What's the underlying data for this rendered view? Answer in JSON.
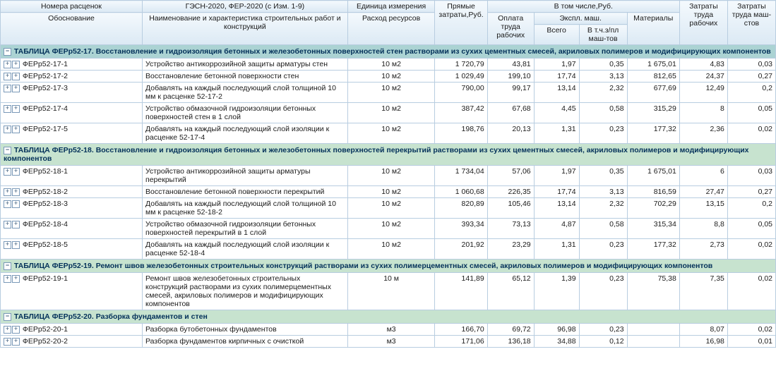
{
  "header": {
    "col1_a": "Номера расценок",
    "col1_b": "Обоснование",
    "col2_a": "ГЭСН-2020, ФЕР-2020 (с Изм. 1-9)",
    "col2_b": "Наименование и характеристика строительных работ и конструкций",
    "col3_a": "Единица измерения",
    "col3_b": "Расход ресурсов",
    "col4": "Прямые затраты,Руб.",
    "col5": "В том числе,Руб.",
    "col5a": "Оплата труда рабочих",
    "col5b": "Экспл. маш.",
    "col5b1": "Всего",
    "col5b2": "В т.ч.з/пл маш-тов",
    "col5c": "Материалы",
    "col6": "Затраты труда рабочих",
    "col7": "Затраты труда маш-стов"
  },
  "groups": [
    {
      "cls": "",
      "title": "ТАБЛИЦА ФЕРр52-17. Восстановление и гидроизоляция бетонных и железобетонных поверхностей стен растворами из сухих цементных смесей, акриловых полимеров и модифицирующих компонентов",
      "rows": [
        {
          "code": "ФЕРр52-17-1",
          "desc": "Устройство антикоррозийной защиты арматуры стен",
          "unit": "10 м2",
          "v": [
            "1 720,79",
            "43,81",
            "1,97",
            "0,35",
            "1 675,01",
            "4,83",
            "0,03"
          ]
        },
        {
          "code": "ФЕРр52-17-2",
          "desc": "Восстановление бетонной поверхности стен",
          "unit": "10 м2",
          "v": [
            "1 029,49",
            "199,10",
            "17,74",
            "3,13",
            "812,65",
            "24,37",
            "0,27"
          ]
        },
        {
          "code": "ФЕРр52-17-3",
          "desc": "Добавлять на каждый последующий слой толщиной 10 мм к расценке 52-17-2",
          "unit": "10 м2",
          "v": [
            "790,00",
            "99,17",
            "13,14",
            "2,32",
            "677,69",
            "12,49",
            "0,2"
          ]
        },
        {
          "code": "ФЕРр52-17-4",
          "desc": "Устройство обмазочной гидроизоляции бетонных поверхностей стен в 1 слой",
          "unit": "10 м2",
          "v": [
            "387,42",
            "67,68",
            "4,45",
            "0,58",
            "315,29",
            "8",
            "0,05"
          ]
        },
        {
          "code": "ФЕРр52-17-5",
          "desc": "Добавлять на каждый последующий слой изоляции к расценке 52-17-4",
          "unit": "10 м2",
          "v": [
            "198,76",
            "20,13",
            "1,31",
            "0,23",
            "177,32",
            "2,36",
            "0,02"
          ]
        }
      ]
    },
    {
      "cls": "alt",
      "title": "ТАБЛИЦА ФЕРр52-18. Восстановление и гидроизоляция бетонных и железобетонных поверхностей перекрытий растворами из сухих цементных смесей, акриловых полимеров и модифицирующих компонентов",
      "rows": [
        {
          "code": "ФЕРр52-18-1",
          "desc": "Устройство антикоррозийной защиты арматуры перекрытий",
          "unit": "10 м2",
          "v": [
            "1 734,04",
            "57,06",
            "1,97",
            "0,35",
            "1 675,01",
            "6",
            "0,03"
          ]
        },
        {
          "code": "ФЕРр52-18-2",
          "desc": "Восстановление бетонной поверхности перекрытий",
          "unit": "10 м2",
          "v": [
            "1 060,68",
            "226,35",
            "17,74",
            "3,13",
            "816,59",
            "27,47",
            "0,27"
          ]
        },
        {
          "code": "ФЕРр52-18-3",
          "desc": "Добавлять на каждый последующий слой толщиной 10 мм к расценке 52-18-2",
          "unit": "10 м2",
          "v": [
            "820,89",
            "105,46",
            "13,14",
            "2,32",
            "702,29",
            "13,15",
            "0,2"
          ]
        },
        {
          "code": "ФЕРр52-18-4",
          "desc": "Устройство обмазочной гидроизоляции бетонных поверхностей перекрытий в 1 слой",
          "unit": "10 м2",
          "v": [
            "393,34",
            "73,13",
            "4,87",
            "0,58",
            "315,34",
            "8,8",
            "0,05"
          ]
        },
        {
          "code": "ФЕРр52-18-5",
          "desc": "Добавлять на каждый последующий слой изоляции к расценке 52-18-4",
          "unit": "10 м2",
          "v": [
            "201,92",
            "23,29",
            "1,31",
            "0,23",
            "177,32",
            "2,73",
            "0,02"
          ]
        }
      ]
    },
    {
      "cls": "alt",
      "title": "ТАБЛИЦА ФЕРр52-19. Ремонт швов железобетонных строительных конструкций растворами из сухих полимерцементных смесей, акриловых полимеров и модифицирующих компонентов",
      "rows": [
        {
          "code": "ФЕРр52-19-1",
          "desc": "Ремонт швов железобетонных строительных конструкций растворами из сухих полимерцементных смесей, акриловых полимеров и модифицирующих компонентов",
          "unit": "10 м",
          "v": [
            "141,89",
            "65,12",
            "1,39",
            "0,23",
            "75,38",
            "7,35",
            "0,02"
          ]
        }
      ]
    },
    {
      "cls": "alt",
      "title": "ТАБЛИЦА ФЕРр52-20. Разборка фундаментов и стен",
      "rows": [
        {
          "code": "ФЕРр52-20-1",
          "desc": "Разборка бутобетонных фундаментов",
          "unit": "м3",
          "v": [
            "166,70",
            "69,72",
            "96,98",
            "0,23",
            "",
            "8,07",
            "0,02"
          ]
        },
        {
          "code": "ФЕРр52-20-2",
          "desc": "Разборка фундаментов кирпичных с очисткой",
          "unit": "м3",
          "v": [
            "171,06",
            "136,18",
            "34,88",
            "0,12",
            "",
            "16,98",
            "0,01"
          ]
        }
      ]
    }
  ]
}
